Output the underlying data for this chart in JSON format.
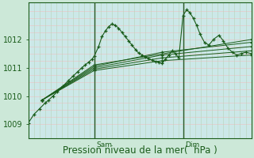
{
  "background_color": "#cce8d8",
  "plot_bg_color": "#cce8e8",
  "grid_h_color": "#e8c8c8",
  "grid_v_color": "#b8d4b8",
  "line_color": "#1a5c1a",
  "marker": "+",
  "ylabel_ticks": [
    1009,
    1010,
    1011,
    1012
  ],
  "ylim": [
    1008.5,
    1013.3
  ],
  "xlim": [
    0,
    1.0
  ],
  "xlabel": "Pression niveau de la mer(  hPa )",
  "xlabel_fontsize": 8.5,
  "tick_fontsize": 7,
  "vline_color": "#2d5c2d",
  "vline_labels": [
    "Sam",
    "Dim"
  ],
  "vline_x": [
    0.295,
    0.694
  ],
  "series": [
    {
      "x": [
        0.0,
        0.025,
        0.05,
        0.075,
        0.09,
        0.11,
        0.13,
        0.155,
        0.18,
        0.2,
        0.22,
        0.24,
        0.255,
        0.27,
        0.285,
        0.295,
        0.315,
        0.33,
        0.345,
        0.36,
        0.375,
        0.39,
        0.405,
        0.42,
        0.435,
        0.45,
        0.465,
        0.48,
        0.495,
        0.51,
        0.525,
        0.54,
        0.555,
        0.57,
        0.585,
        0.6,
        0.615,
        0.63,
        0.645,
        0.66,
        0.675,
        0.694,
        0.71,
        0.725,
        0.74,
        0.755,
        0.77,
        0.79,
        0.81,
        0.83,
        0.855,
        0.875,
        0.895,
        0.915,
        0.935,
        0.955,
        0.975,
        1.0
      ],
      "y": [
        1009.05,
        1009.35,
        1009.55,
        1009.75,
        1009.85,
        1010.0,
        1010.15,
        1010.35,
        1010.55,
        1010.7,
        1010.85,
        1011.0,
        1011.1,
        1011.2,
        1011.3,
        1011.4,
        1011.75,
        1012.1,
        1012.3,
        1012.45,
        1012.55,
        1012.5,
        1012.4,
        1012.25,
        1012.1,
        1011.95,
        1011.8,
        1011.65,
        1011.52,
        1011.45,
        1011.38,
        1011.32,
        1011.27,
        1011.22,
        1011.2,
        1011.15,
        1011.3,
        1011.45,
        1011.6,
        1011.5,
        1011.35,
        1012.85,
        1013.05,
        1012.95,
        1012.75,
        1012.5,
        1012.2,
        1011.9,
        1011.8,
        1012.0,
        1012.15,
        1011.95,
        1011.7,
        1011.55,
        1011.45,
        1011.5,
        1011.55,
        1011.5
      ]
    },
    {
      "x": [
        0.06,
        0.295,
        1.0
      ],
      "y": [
        1009.85,
        1011.1,
        1012.0
      ]
    },
    {
      "x": [
        0.06,
        0.295,
        0.6,
        1.0
      ],
      "y": [
        1009.85,
        1011.05,
        1011.55,
        1011.9
      ]
    },
    {
      "x": [
        0.06,
        0.295,
        0.6,
        1.0
      ],
      "y": [
        1009.85,
        1011.0,
        1011.45,
        1011.75
      ]
    },
    {
      "x": [
        0.06,
        0.295,
        0.6,
        1.0
      ],
      "y": [
        1009.85,
        1010.95,
        1011.35,
        1011.6
      ]
    },
    {
      "x": [
        0.06,
        0.295,
        0.6,
        1.0
      ],
      "y": [
        1009.85,
        1010.9,
        1011.25,
        1011.45
      ]
    }
  ]
}
